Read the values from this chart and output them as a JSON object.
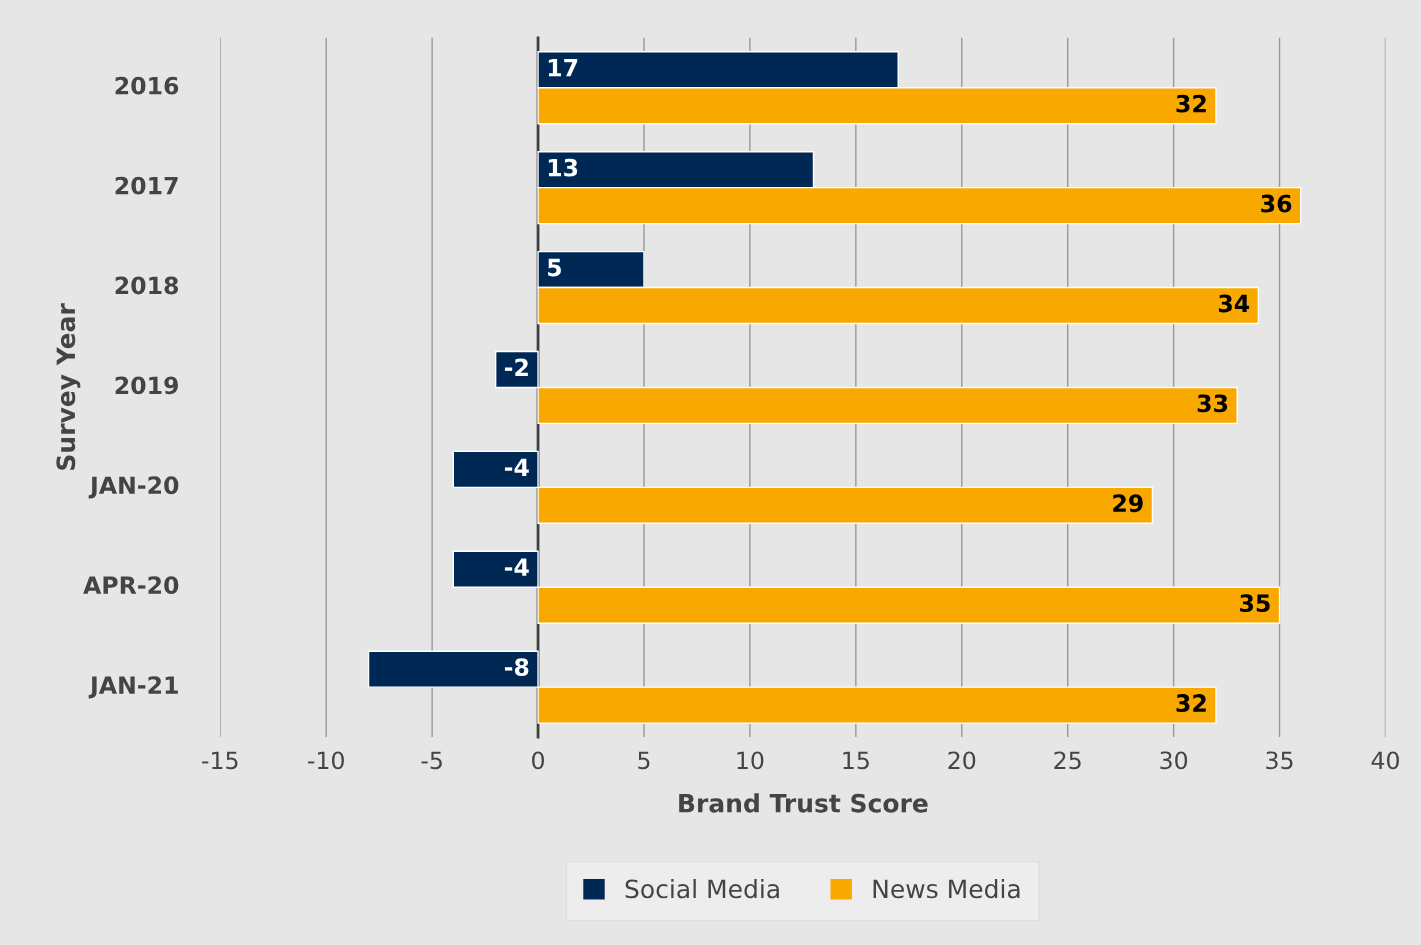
{
  "chart_data": {
    "type": "bar",
    "orientation": "horizontal",
    "xlabel": "Brand Trust Score",
    "ylabel": "Survey Year",
    "categories": [
      "2016",
      "2017",
      "2018",
      "2019",
      "JAN-20",
      "APR-20",
      "JAN-21"
    ],
    "series": [
      {
        "name": "Social Media",
        "color": "#002855",
        "values": [
          17,
          13,
          5,
          -2,
          -4,
          -4,
          -8
        ]
      },
      {
        "name": "News Media",
        "color": "#f9a800",
        "values": [
          32,
          36,
          34,
          33,
          29,
          35,
          32
        ]
      }
    ],
    "xlim": [
      -15,
      40
    ],
    "xticks": [
      -15,
      -10,
      -5,
      0,
      5,
      10,
      15,
      20,
      25,
      30,
      35,
      40
    ],
    "grid": "x",
    "legend": "bottom",
    "data_labels": true
  }
}
